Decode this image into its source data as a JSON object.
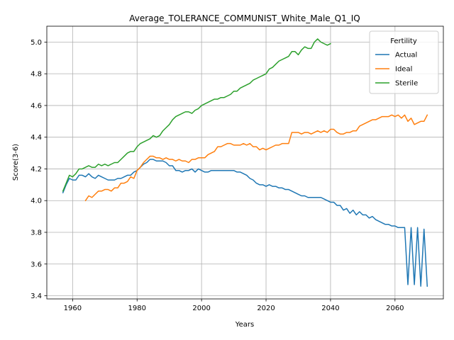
{
  "chart_data": {
    "type": "line",
    "title": "Average_TOLERANCE_COMMUNIST_White_Male_Q1_IQ",
    "xlabel": "Years",
    "ylabel": "Score(3-6)",
    "xlim": [
      1952,
      2075
    ],
    "ylim": [
      3.38,
      5.1
    ],
    "xticks": [
      1960,
      1980,
      2000,
      2020,
      2040,
      2060
    ],
    "yticks": [
      3.4,
      3.6,
      3.8,
      4.0,
      4.2,
      4.4,
      4.6,
      4.8,
      5.0
    ],
    "ytick_labels": [
      "3.4",
      "3.6",
      "3.8",
      "4.0",
      "4.2",
      "4.4",
      "4.6",
      "4.8",
      "5.0"
    ],
    "grid": true,
    "legend": {
      "title": "Fertility",
      "placement": "top-right"
    },
    "series": [
      {
        "name": "Actual",
        "color": "#1f77b4",
        "points": [
          [
            1957,
            4.05
          ],
          [
            1958,
            4.1
          ],
          [
            1959,
            4.14
          ],
          [
            1960,
            4.13
          ],
          [
            1961,
            4.13
          ],
          [
            1962,
            4.16
          ],
          [
            1963,
            4.16
          ],
          [
            1964,
            4.15
          ],
          [
            1965,
            4.17
          ],
          [
            1966,
            4.15
          ],
          [
            1967,
            4.14
          ],
          [
            1968,
            4.16
          ],
          [
            1969,
            4.15
          ],
          [
            1970,
            4.14
          ],
          [
            1971,
            4.13
          ],
          [
            1972,
            4.13
          ],
          [
            1973,
            4.13
          ],
          [
            1974,
            4.14
          ],
          [
            1975,
            4.14
          ],
          [
            1976,
            4.15
          ],
          [
            1977,
            4.16
          ],
          [
            1978,
            4.16
          ],
          [
            1979,
            4.18
          ],
          [
            1980,
            4.19
          ],
          [
            1981,
            4.21
          ],
          [
            1982,
            4.23
          ],
          [
            1983,
            4.24
          ],
          [
            1984,
            4.26
          ],
          [
            1985,
            4.26
          ],
          [
            1986,
            4.25
          ],
          [
            1987,
            4.25
          ],
          [
            1988,
            4.25
          ],
          [
            1989,
            4.24
          ],
          [
            1990,
            4.22
          ],
          [
            1991,
            4.22
          ],
          [
            1992,
            4.19
          ],
          [
            1993,
            4.19
          ],
          [
            1994,
            4.18
          ],
          [
            1995,
            4.19
          ],
          [
            1996,
            4.19
          ],
          [
            1997,
            4.2
          ],
          [
            1998,
            4.18
          ],
          [
            1999,
            4.2
          ],
          [
            2000,
            4.19
          ],
          [
            2001,
            4.18
          ],
          [
            2002,
            4.18
          ],
          [
            2003,
            4.19
          ],
          [
            2004,
            4.19
          ],
          [
            2005,
            4.19
          ],
          [
            2006,
            4.19
          ],
          [
            2007,
            4.19
          ],
          [
            2008,
            4.19
          ],
          [
            2009,
            4.19
          ],
          [
            2010,
            4.19
          ],
          [
            2011,
            4.18
          ],
          [
            2012,
            4.18
          ],
          [
            2013,
            4.17
          ],
          [
            2014,
            4.16
          ],
          [
            2015,
            4.14
          ],
          [
            2016,
            4.13
          ],
          [
            2017,
            4.11
          ],
          [
            2018,
            4.1
          ],
          [
            2019,
            4.1
          ],
          [
            2020,
            4.09
          ],
          [
            2021,
            4.1
          ],
          [
            2022,
            4.09
          ],
          [
            2023,
            4.09
          ],
          [
            2024,
            4.08
          ],
          [
            2025,
            4.08
          ],
          [
            2026,
            4.07
          ],
          [
            2027,
            4.07
          ],
          [
            2028,
            4.06
          ],
          [
            2029,
            4.05
          ],
          [
            2030,
            4.04
          ],
          [
            2031,
            4.03
          ],
          [
            2032,
            4.03
          ],
          [
            2033,
            4.02
          ],
          [
            2034,
            4.02
          ],
          [
            2035,
            4.02
          ],
          [
            2036,
            4.02
          ],
          [
            2037,
            4.02
          ],
          [
            2038,
            4.01
          ],
          [
            2039,
            4.0
          ],
          [
            2040,
            3.99
          ],
          [
            2041,
            3.99
          ],
          [
            2042,
            3.97
          ],
          [
            2043,
            3.97
          ],
          [
            2044,
            3.94
          ],
          [
            2045,
            3.95
          ],
          [
            2046,
            3.92
          ],
          [
            2047,
            3.94
          ],
          [
            2048,
            3.91
          ],
          [
            2049,
            3.93
          ],
          [
            2050,
            3.91
          ],
          [
            2051,
            3.91
          ],
          [
            2052,
            3.89
          ],
          [
            2053,
            3.9
          ],
          [
            2054,
            3.88
          ],
          [
            2055,
            3.87
          ],
          [
            2056,
            3.86
          ],
          [
            2057,
            3.85
          ],
          [
            2058,
            3.85
          ],
          [
            2059,
            3.84
          ],
          [
            2060,
            3.84
          ],
          [
            2061,
            3.83
          ],
          [
            2062,
            3.83
          ],
          [
            2063,
            3.83
          ],
          [
            2064,
            3.47
          ],
          [
            2065,
            3.83
          ],
          [
            2066,
            3.47
          ],
          [
            2067,
            3.83
          ],
          [
            2068,
            3.46
          ],
          [
            2069,
            3.82
          ],
          [
            2070,
            3.46
          ]
        ]
      },
      {
        "name": "Ideal",
        "color": "#ff7f0e",
        "points": [
          [
            1964,
            4.0
          ],
          [
            1965,
            4.03
          ],
          [
            1966,
            4.02
          ],
          [
            1967,
            4.04
          ],
          [
            1968,
            4.06
          ],
          [
            1969,
            4.06
          ],
          [
            1970,
            4.07
          ],
          [
            1971,
            4.07
          ],
          [
            1972,
            4.06
          ],
          [
            1973,
            4.08
          ],
          [
            1974,
            4.08
          ],
          [
            1975,
            4.11
          ],
          [
            1976,
            4.11
          ],
          [
            1977,
            4.12
          ],
          [
            1978,
            4.15
          ],
          [
            1979,
            4.14
          ],
          [
            1980,
            4.19
          ],
          [
            1981,
            4.21
          ],
          [
            1982,
            4.24
          ],
          [
            1983,
            4.26
          ],
          [
            1984,
            4.28
          ],
          [
            1985,
            4.28
          ],
          [
            1986,
            4.27
          ],
          [
            1987,
            4.27
          ],
          [
            1988,
            4.26
          ],
          [
            1989,
            4.27
          ],
          [
            1990,
            4.26
          ],
          [
            1991,
            4.26
          ],
          [
            1992,
            4.25
          ],
          [
            1993,
            4.26
          ],
          [
            1994,
            4.25
          ],
          [
            1995,
            4.25
          ],
          [
            1996,
            4.24
          ],
          [
            1997,
            4.26
          ],
          [
            1998,
            4.26
          ],
          [
            1999,
            4.27
          ],
          [
            2000,
            4.27
          ],
          [
            2001,
            4.27
          ],
          [
            2002,
            4.29
          ],
          [
            2003,
            4.3
          ],
          [
            2004,
            4.31
          ],
          [
            2005,
            4.34
          ],
          [
            2006,
            4.34
          ],
          [
            2007,
            4.35
          ],
          [
            2008,
            4.36
          ],
          [
            2009,
            4.36
          ],
          [
            2010,
            4.35
          ],
          [
            2011,
            4.35
          ],
          [
            2012,
            4.35
          ],
          [
            2013,
            4.36
          ],
          [
            2014,
            4.35
          ],
          [
            2015,
            4.36
          ],
          [
            2016,
            4.34
          ],
          [
            2017,
            4.34
          ],
          [
            2018,
            4.32
          ],
          [
            2019,
            4.33
          ],
          [
            2020,
            4.32
          ],
          [
            2021,
            4.33
          ],
          [
            2022,
            4.34
          ],
          [
            2023,
            4.35
          ],
          [
            2024,
            4.35
          ],
          [
            2025,
            4.36
          ],
          [
            2026,
            4.36
          ],
          [
            2027,
            4.36
          ],
          [
            2028,
            4.43
          ],
          [
            2029,
            4.43
          ],
          [
            2030,
            4.43
          ],
          [
            2031,
            4.42
          ],
          [
            2032,
            4.43
          ],
          [
            2033,
            4.43
          ],
          [
            2034,
            4.42
          ],
          [
            2035,
            4.43
          ],
          [
            2036,
            4.44
          ],
          [
            2037,
            4.43
          ],
          [
            2038,
            4.44
          ],
          [
            2039,
            4.43
          ],
          [
            2040,
            4.45
          ],
          [
            2041,
            4.45
          ],
          [
            2042,
            4.43
          ],
          [
            2043,
            4.42
          ],
          [
            2044,
            4.42
          ],
          [
            2045,
            4.43
          ],
          [
            2046,
            4.43
          ],
          [
            2047,
            4.44
          ],
          [
            2048,
            4.44
          ],
          [
            2049,
            4.47
          ],
          [
            2050,
            4.48
          ],
          [
            2051,
            4.49
          ],
          [
            2052,
            4.5
          ],
          [
            2053,
            4.51
          ],
          [
            2054,
            4.51
          ],
          [
            2055,
            4.52
          ],
          [
            2056,
            4.53
          ],
          [
            2057,
            4.53
          ],
          [
            2058,
            4.53
          ],
          [
            2059,
            4.54
          ],
          [
            2060,
            4.53
          ],
          [
            2061,
            4.54
          ],
          [
            2062,
            4.52
          ],
          [
            2063,
            4.54
          ],
          [
            2064,
            4.5
          ],
          [
            2065,
            4.52
          ],
          [
            2066,
            4.48
          ],
          [
            2067,
            4.49
          ],
          [
            2068,
            4.5
          ],
          [
            2069,
            4.5
          ],
          [
            2070,
            4.54
          ]
        ]
      },
      {
        "name": "Sterile",
        "color": "#2ca02c",
        "points": [
          [
            1957,
            4.06
          ],
          [
            1958,
            4.11
          ],
          [
            1959,
            4.16
          ],
          [
            1960,
            4.15
          ],
          [
            1961,
            4.17
          ],
          [
            1962,
            4.2
          ],
          [
            1963,
            4.2
          ],
          [
            1964,
            4.21
          ],
          [
            1965,
            4.22
          ],
          [
            1966,
            4.21
          ],
          [
            1967,
            4.21
          ],
          [
            1968,
            4.23
          ],
          [
            1969,
            4.22
          ],
          [
            1970,
            4.23
          ],
          [
            1971,
            4.22
          ],
          [
            1972,
            4.23
          ],
          [
            1973,
            4.24
          ],
          [
            1974,
            4.24
          ],
          [
            1975,
            4.26
          ],
          [
            1976,
            4.28
          ],
          [
            1977,
            4.3
          ],
          [
            1978,
            4.31
          ],
          [
            1979,
            4.31
          ],
          [
            1980,
            4.34
          ],
          [
            1981,
            4.36
          ],
          [
            1982,
            4.37
          ],
          [
            1983,
            4.38
          ],
          [
            1984,
            4.39
          ],
          [
            1985,
            4.41
          ],
          [
            1986,
            4.4
          ],
          [
            1987,
            4.41
          ],
          [
            1988,
            4.44
          ],
          [
            1989,
            4.46
          ],
          [
            1990,
            4.48
          ],
          [
            1991,
            4.51
          ],
          [
            1992,
            4.53
          ],
          [
            1993,
            4.54
          ],
          [
            1994,
            4.55
          ],
          [
            1995,
            4.56
          ],
          [
            1996,
            4.56
          ],
          [
            1997,
            4.55
          ],
          [
            1998,
            4.57
          ],
          [
            1999,
            4.58
          ],
          [
            2000,
            4.6
          ],
          [
            2001,
            4.61
          ],
          [
            2002,
            4.62
          ],
          [
            2003,
            4.63
          ],
          [
            2004,
            4.64
          ],
          [
            2005,
            4.64
          ],
          [
            2006,
            4.65
          ],
          [
            2007,
            4.65
          ],
          [
            2008,
            4.66
          ],
          [
            2009,
            4.67
          ],
          [
            2010,
            4.69
          ],
          [
            2011,
            4.69
          ],
          [
            2012,
            4.71
          ],
          [
            2013,
            4.72
          ],
          [
            2014,
            4.73
          ],
          [
            2015,
            4.74
          ],
          [
            2016,
            4.76
          ],
          [
            2017,
            4.77
          ],
          [
            2018,
            4.78
          ],
          [
            2019,
            4.79
          ],
          [
            2020,
            4.8
          ],
          [
            2021,
            4.83
          ],
          [
            2022,
            4.84
          ],
          [
            2023,
            4.86
          ],
          [
            2024,
            4.88
          ],
          [
            2025,
            4.89
          ],
          [
            2026,
            4.9
          ],
          [
            2027,
            4.91
          ],
          [
            2028,
            4.94
          ],
          [
            2029,
            4.94
          ],
          [
            2030,
            4.92
          ],
          [
            2031,
            4.95
          ],
          [
            2032,
            4.97
          ],
          [
            2033,
            4.96
          ],
          [
            2034,
            4.96
          ],
          [
            2035,
            5.0
          ],
          [
            2036,
            5.02
          ],
          [
            2037,
            5.0
          ],
          [
            2038,
            4.99
          ],
          [
            2039,
            4.98
          ],
          [
            2040,
            4.99
          ]
        ]
      }
    ]
  }
}
